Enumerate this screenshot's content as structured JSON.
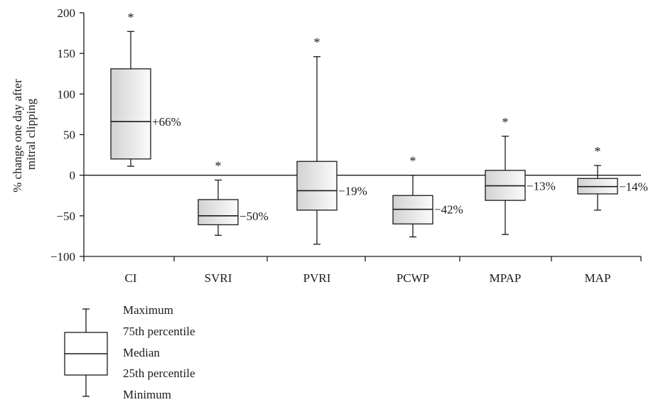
{
  "chart_data": {
    "type": "box",
    "ylabel": "% change one day after mitral clipping",
    "ylim": [
      -100,
      200
    ],
    "yticks": [
      "200",
      "150",
      "100",
      "50",
      "0",
      "−50",
      "−100"
    ],
    "ytick_values": [
      200,
      150,
      100,
      50,
      0,
      -50,
      -100
    ],
    "categories": [
      "CI",
      "SVRI",
      "PVRI",
      "PCWP",
      "MPAP",
      "MAP"
    ],
    "boxes": [
      {
        "category": "CI",
        "min": 11,
        "q1": 20,
        "median": 66,
        "q3": 131,
        "max": 177,
        "label": "+66%",
        "significant": "*"
      },
      {
        "category": "SVRI",
        "min": -74,
        "q1": -61,
        "median": -50,
        "q3": -30,
        "max": -6,
        "label": "−50%",
        "significant": "*"
      },
      {
        "category": "PVRI",
        "min": -85,
        "q1": -43,
        "median": -19,
        "q3": 17,
        "max": 146,
        "label": "−19%",
        "significant": "*"
      },
      {
        "category": "PCWP",
        "min": -76,
        "q1": -60,
        "median": -42,
        "q3": -25,
        "max": 0,
        "label": "−42%",
        "significant": "*"
      },
      {
        "category": "MPAP",
        "min": -73,
        "q1": -31,
        "median": -13,
        "q3": 6,
        "max": 48,
        "label": "−13%",
        "significant": "*"
      },
      {
        "category": "MAP",
        "min": -43,
        "q1": -23,
        "median": -14,
        "q3": -4,
        "max": 12,
        "label": "−14%",
        "significant": "*"
      }
    ],
    "reference_line": 0,
    "legend": {
      "maximum": "Maximum",
      "q3": "75th percentile",
      "median": "Median",
      "q1": "25th percentile",
      "minimum": "Minimum"
    }
  }
}
